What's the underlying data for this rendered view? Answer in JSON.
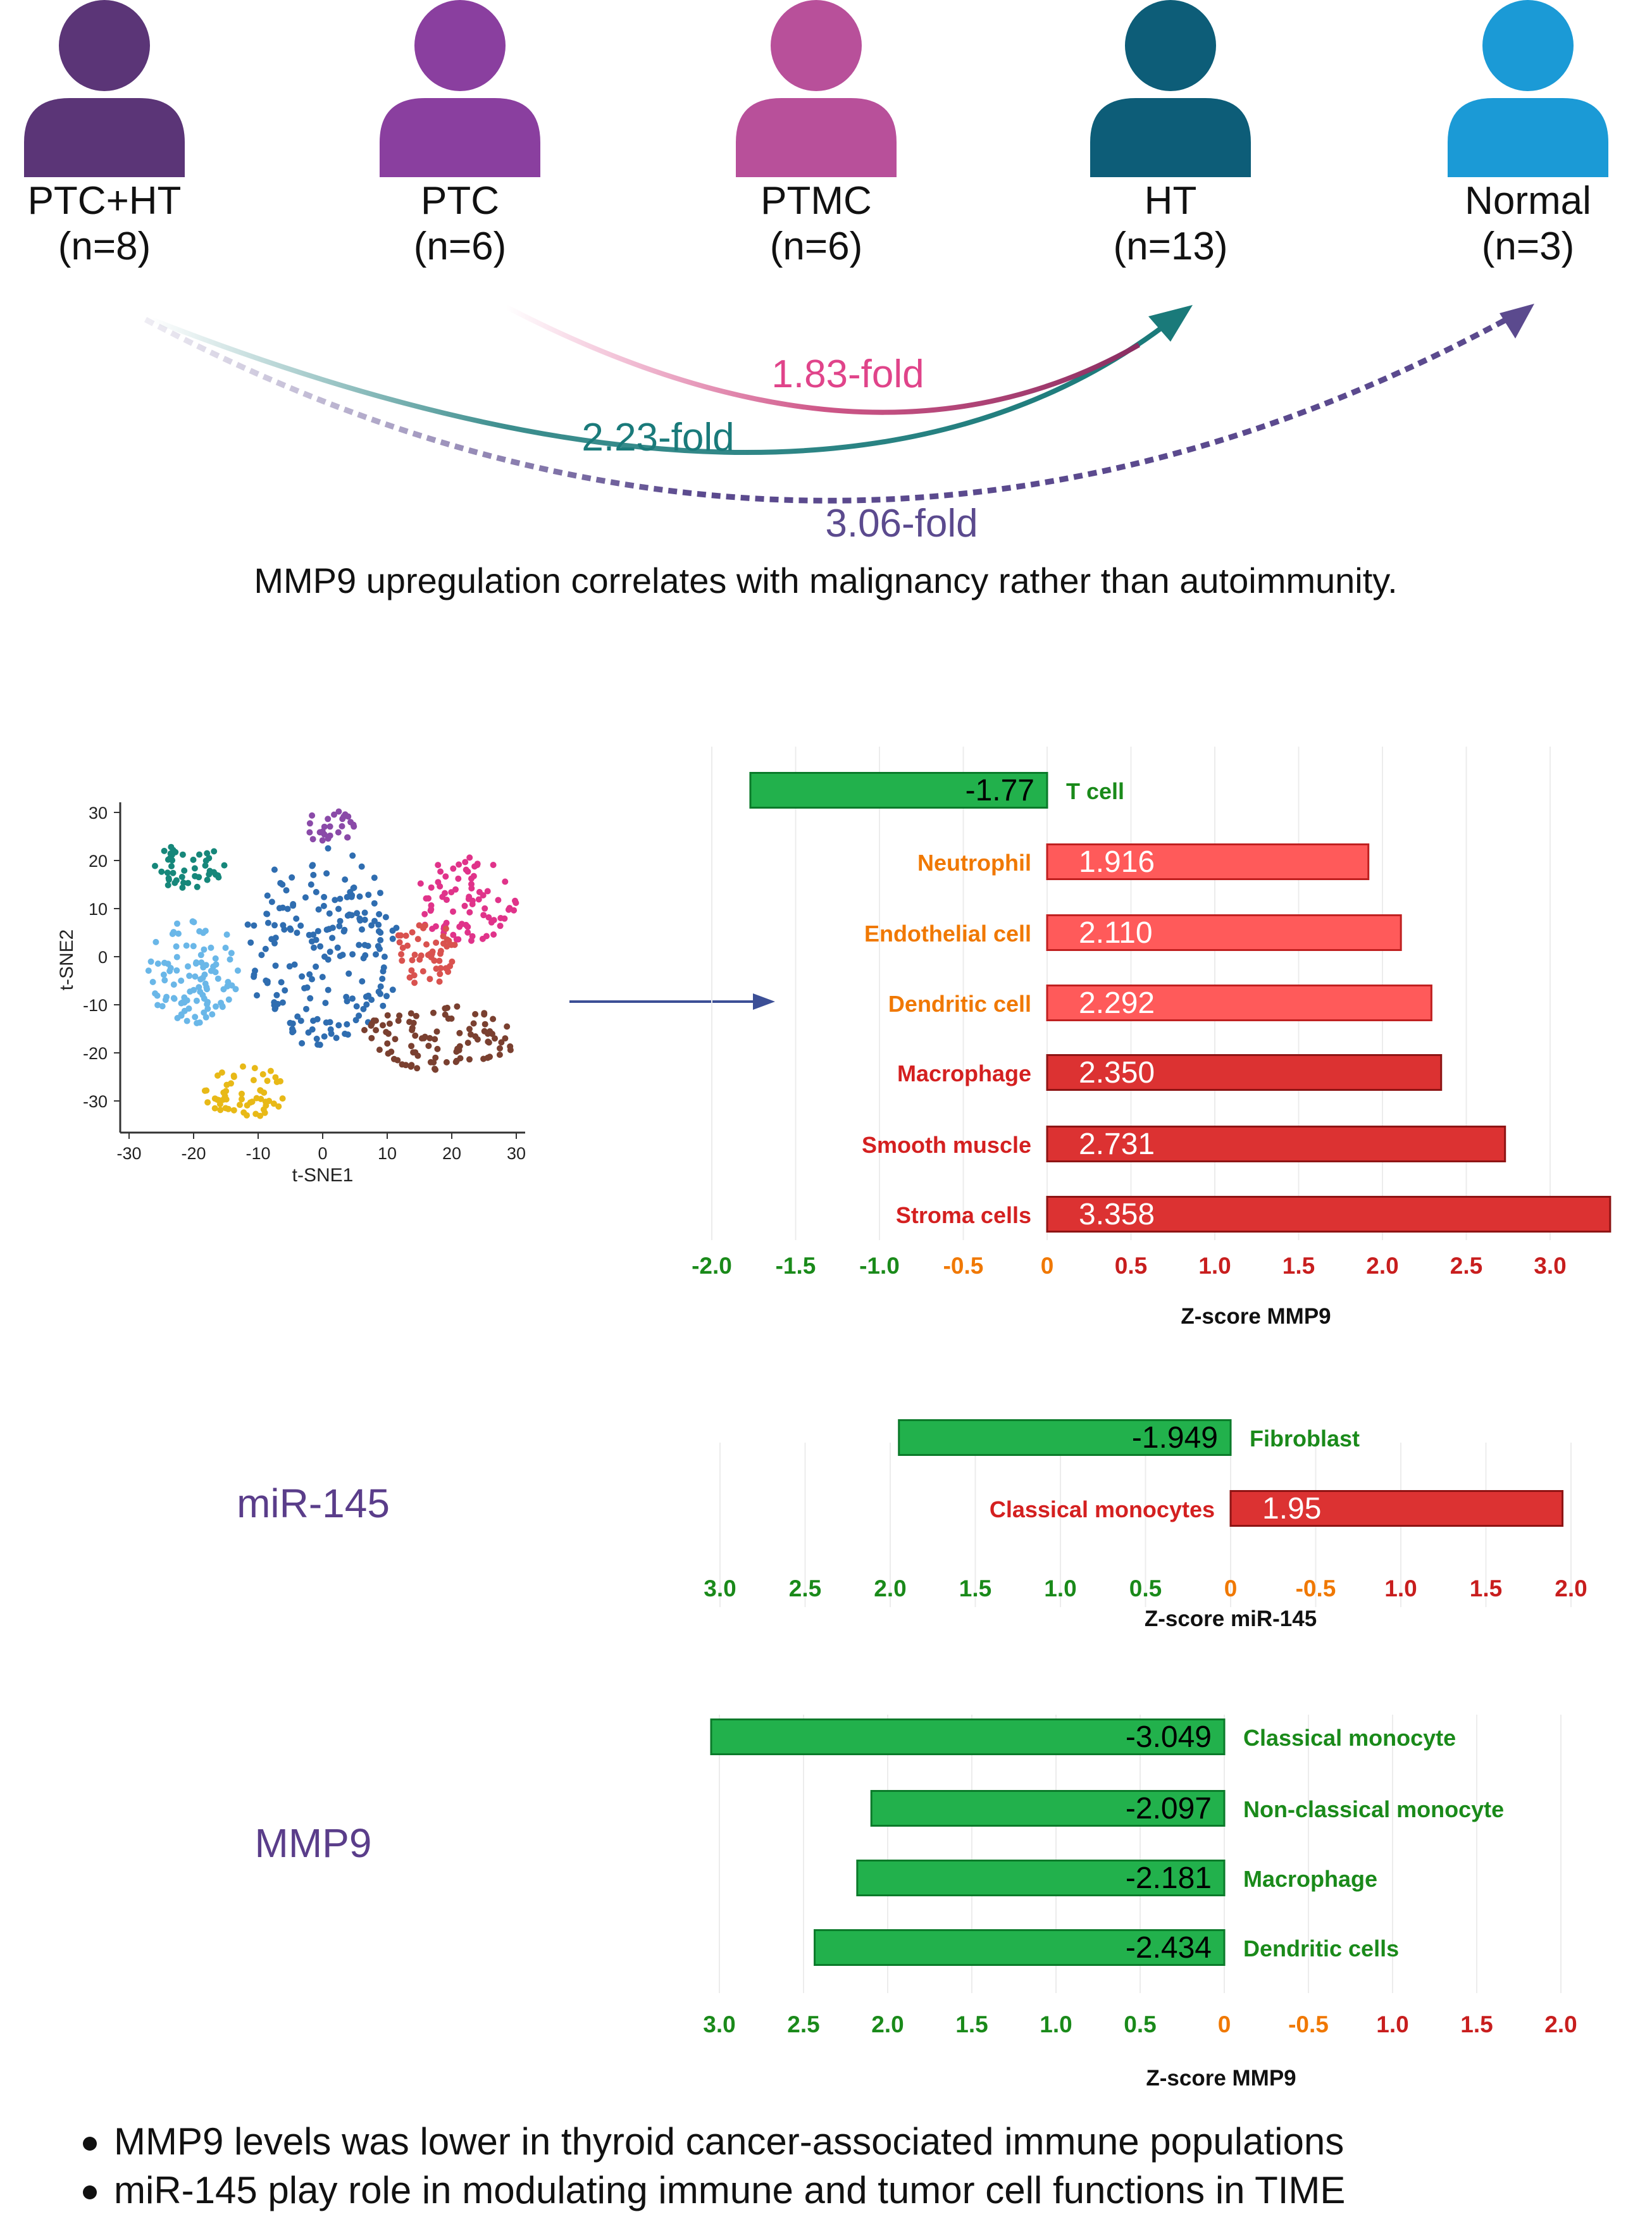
{
  "colors": {
    "green_bar": "#22b14c",
    "green_bar_edge": "#0b7a2a",
    "red_dark": "#dc3232",
    "red_light": "#ff5a5a",
    "label_green": "#1a8a1a",
    "label_orange": "#f07800",
    "label_red": "#d42020",
    "axis_green": "#1a8a1a",
    "axis_orange": "#f07800",
    "axis_red": "#c81e1e",
    "title_purple": "#5a3d8a",
    "fold_pink": "#e0448a",
    "fold_teal": "#1a7a7a",
    "fold_purple": "#5b4a8e"
  },
  "groups": [
    {
      "label": "PTC+HT",
      "n": "(n=8)",
      "color": "#5b3577"
    },
    {
      "label": "PTC",
      "n": "(n=6)",
      "color": "#8a3f9f"
    },
    {
      "label": "PTMC",
      "n": "(n=6)",
      "color": "#b8509a"
    },
    {
      "label": "HT",
      "n": "(n=13)",
      "color": "#0d5d78"
    },
    {
      "label": "Normal",
      "n": "(n=3)",
      "color": "#1b9ad6"
    }
  ],
  "fold_labels": {
    "pink": "1.83-fold",
    "teal": "2.23-fold",
    "purple": "3.06-fold"
  },
  "headline": "MMP9 upregulation correlates with malignancy rather than autoimmunity.",
  "tsne": {
    "xlabel": "t-SNE1",
    "ylabel": "t-SNE2",
    "xticks": [
      "-30",
      "-20",
      "-10",
      "0",
      "10",
      "20",
      "30"
    ],
    "yticks": [
      "30",
      "20",
      "10",
      "0",
      "-10",
      "-20",
      "-30"
    ]
  },
  "side_labels": {
    "mir": "miR-145",
    "mmp9": "MMP9"
  },
  "chart_data": [
    {
      "type": "bar",
      "orientation": "horizontal",
      "xlabel": "Z-score MMP9",
      "xticks": [
        "-2.0",
        "-1.5",
        "-1.0",
        "-0.5",
        "0",
        "0.5",
        "1.0",
        "1.5",
        "2.0",
        "2.5",
        "3.0"
      ],
      "xlim": [
        -2.0,
        3.3
      ],
      "bars": [
        {
          "label": "T cell",
          "value": -1.77,
          "text": "-1.77",
          "fill": "green",
          "label_color": "green"
        },
        {
          "label": "Neutrophil",
          "value": 1.916,
          "text": "1.916",
          "fill": "light",
          "label_color": "orange"
        },
        {
          "label": "Endothelial cell",
          "value": 2.11,
          "text": "2.110",
          "fill": "light",
          "label_color": "orange"
        },
        {
          "label": "Dendritic cell",
          "value": 2.292,
          "text": "2.292",
          "fill": "light",
          "label_color": "orange"
        },
        {
          "label": "Macrophage",
          "value": 2.35,
          "text": "2.350",
          "fill": "dark",
          "label_color": "red"
        },
        {
          "label": "Smooth muscle",
          "value": 2.731,
          "text": "2.731",
          "fill": "dark",
          "label_color": "red"
        },
        {
          "label": "Stroma cells",
          "value": 3.358,
          "text": "3.358",
          "fill": "dark",
          "label_color": "red"
        }
      ]
    },
    {
      "type": "bar",
      "orientation": "horizontal",
      "xlabel": "Z-score  miR-145",
      "xticks": [
        "3.0",
        "2.5",
        "2.0",
        "1.5",
        "1.0",
        "0.5",
        "0",
        "-0.5",
        "1.0",
        "1.5",
        "2.0"
      ],
      "xlim": [
        -3.0,
        2.0
      ],
      "bars": [
        {
          "label": "Fibroblast",
          "value": -1.949,
          "text": "-1.949",
          "fill": "green",
          "label_color": "green"
        },
        {
          "label": "Classical monocytes",
          "value": 1.95,
          "text": "1.95",
          "fill": "dark",
          "label_color": "red"
        }
      ]
    },
    {
      "type": "bar",
      "orientation": "horizontal",
      "xlabel": "Z-score MMP9",
      "xticks": [
        "3.0",
        "2.5",
        "2.0",
        "1.5",
        "1.0",
        "0.5",
        "0",
        "-0.5",
        "1.0",
        "1.5",
        "2.0"
      ],
      "xlim": [
        -3.0,
        2.0
      ],
      "bars": [
        {
          "label": "Classical monocyte",
          "value": -3.049,
          "text": "-3.049",
          "fill": "green",
          "label_color": "green"
        },
        {
          "label": "Non-classical monocyte",
          "value": -2.097,
          "text": "-2.097",
          "fill": "green",
          "label_color": "green"
        },
        {
          "label": "Macrophage",
          "value": -2.181,
          "text": "-2.181",
          "fill": "green",
          "label_color": "green"
        },
        {
          "label": "Dendritic cells",
          "value": -2.434,
          "text": "-2.434",
          "fill": "green",
          "label_color": "green"
        }
      ]
    }
  ],
  "bullets": [
    "MMP9 levels was lower in thyroid cancer-associated immune populations",
    "miR-145 play role in modulating immune and tumor cell functions in TIME"
  ]
}
